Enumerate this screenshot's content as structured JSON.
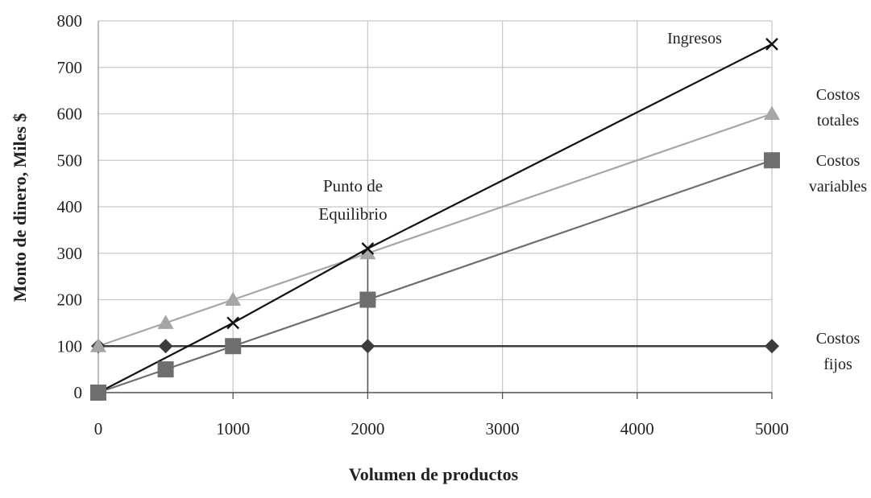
{
  "chart_data": {
    "type": "line",
    "title": "",
    "xlabel": "Volumen de productos",
    "ylabel": "Monto de dinero, Miles $",
    "xlim": [
      0,
      5000
    ],
    "ylim": [
      0,
      800
    ],
    "x_ticks": [
      "0",
      "1000",
      "2000",
      "3000",
      "4000",
      "5000"
    ],
    "y_ticks": [
      "0",
      "100",
      "200",
      "300",
      "400",
      "500",
      "600",
      "700",
      "800"
    ],
    "grid": true,
    "series": [
      {
        "name": "Ingresos",
        "label_lines": [
          "Ingresos"
        ],
        "marker": "x",
        "color": "#111111",
        "x": [
          0,
          1000,
          2000,
          5000
        ],
        "y": [
          0,
          150,
          310,
          750
        ]
      },
      {
        "name": "Costos totales",
        "label_lines": [
          "Costos",
          "totales"
        ],
        "marker": "triangle",
        "color": "#a6a6a6",
        "x": [
          0,
          500,
          1000,
          2000,
          5000
        ],
        "y": [
          100,
          150,
          200,
          300,
          600
        ]
      },
      {
        "name": "Costos variables",
        "label_lines": [
          "Costos",
          "variables"
        ],
        "marker": "square",
        "color": "#6e6e6e",
        "x": [
          0,
          500,
          1000,
          2000,
          5000
        ],
        "y": [
          0,
          50,
          100,
          200,
          500
        ]
      },
      {
        "name": "Costos fijos",
        "label_lines": [
          "Costos",
          "fijos"
        ],
        "marker": "diamond",
        "color": "#3c3c3c",
        "x": [
          0,
          500,
          1000,
          2000,
          5000
        ],
        "y": [
          100,
          100,
          100,
          100,
          100
        ]
      }
    ],
    "annotations": [
      {
        "text_lines": [
          "Punto de",
          "Equilibrio"
        ],
        "x": 2000,
        "y": 300
      }
    ]
  }
}
